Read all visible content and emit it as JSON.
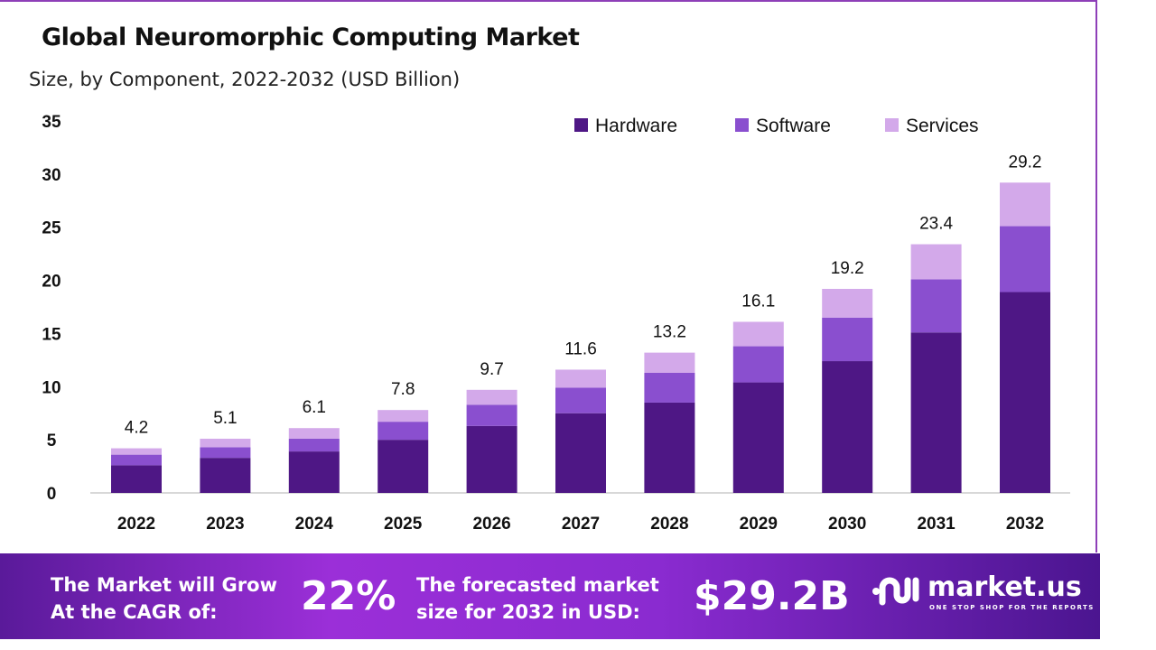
{
  "title": "Global Neuromorphic Computing Market",
  "subtitle": "Size, by Component, 2022-2032 (USD Billion)",
  "chart_data": {
    "type": "bar",
    "stacked": true,
    "categories": [
      "2022",
      "2023",
      "2024",
      "2025",
      "2026",
      "2027",
      "2028",
      "2029",
      "2030",
      "2031",
      "2032"
    ],
    "series": [
      {
        "name": "Hardware",
        "color": "#4e1785",
        "values": [
          2.6,
          3.3,
          3.9,
          5.0,
          6.3,
          7.5,
          8.5,
          10.4,
          12.4,
          15.1,
          18.9
        ]
      },
      {
        "name": "Software",
        "color": "#8a4fcf",
        "values": [
          1.0,
          1.0,
          1.2,
          1.7,
          2.0,
          2.4,
          2.8,
          3.4,
          4.1,
          5.0,
          6.2
        ]
      },
      {
        "name": "Services",
        "color": "#d3a9ea",
        "values": [
          0.6,
          0.8,
          1.0,
          1.1,
          1.4,
          1.7,
          1.9,
          2.3,
          2.7,
          3.3,
          4.1
        ]
      }
    ],
    "totals": [
      "4.2",
      "5.1",
      "6.1",
      "7.8",
      "9.7",
      "11.6",
      "13.2",
      "16.1",
      "19.2",
      "23.4",
      "29.2"
    ],
    "ylim": [
      0,
      35
    ],
    "yticks": [
      "0",
      "5",
      "10",
      "15",
      "20",
      "25",
      "30",
      "35"
    ],
    "legend": "top-right",
    "grid": false
  },
  "banner": {
    "cagr_label_1": "The Market will Grow",
    "cagr_label_2": "At the CAGR of:",
    "cagr_value": "22%",
    "forecast_label_1": "The forecasted market",
    "forecast_label_2": "size for 2032 in USD:",
    "forecast_value": "$29.2B",
    "logo_name": "market.us",
    "logo_tagline": "ONE STOP SHOP FOR THE REPORTS"
  }
}
